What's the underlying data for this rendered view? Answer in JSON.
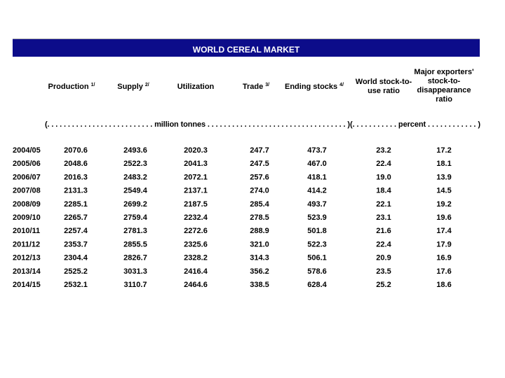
{
  "header": {
    "title": "WORLD CEREAL MARKET"
  },
  "table": {
    "columns": [
      {
        "label": "Production",
        "note": "1/"
      },
      {
        "label": "Supply",
        "note": "2/"
      },
      {
        "label": "Utilization"
      },
      {
        "label": "Trade",
        "note": "3/"
      },
      {
        "label": "Ending stocks",
        "note": "4/"
      },
      {
        "label": "World stock-to-use ratio"
      },
      {
        "label": "Major exporters' stock-to-disappearance ratio",
        "note": "5/"
      }
    ],
    "units": [
      "(. . . . . . . . . . . . . . . . . . . . . . . . . . million tonnes . . . . . . . . . . . . . . . . . . . . . . . . . . . . . . . . . . )",
      "(. . . . . . . . . . . percent . . . . . . . . . . . . )"
    ],
    "rows": [
      [
        "2004/05",
        "2070.6",
        "2493.6",
        "2020.3",
        "247.7",
        "473.7",
        "23.2",
        "17.2"
      ],
      [
        "2005/06",
        "2048.6",
        "2522.3",
        "2041.3",
        "247.5",
        "467.0",
        "22.4",
        "18.1"
      ],
      [
        "2006/07",
        "2016.3",
        "2483.2",
        "2072.1",
        "257.6",
        "418.1",
        "19.0",
        "13.9"
      ],
      [
        "2007/08",
        "2131.3",
        "2549.4",
        "2137.1",
        "274.0",
        "414.2",
        "18.4",
        "14.5"
      ],
      [
        "2008/09",
        "2285.1",
        "2699.2",
        "2187.5",
        "285.4",
        "493.7",
        "22.1",
        "19.2"
      ],
      [
        "2009/10",
        "2265.7",
        "2759.4",
        "2232.4",
        "278.5",
        "523.9",
        "23.1",
        "19.6"
      ],
      [
        "2010/11",
        "2257.4",
        "2781.3",
        "2272.6",
        "288.9",
        "501.8",
        "21.6",
        "17.4"
      ],
      [
        "2011/12",
        "2353.7",
        "2855.5",
        "2325.6",
        "321.0",
        "522.3",
        "22.4",
        "17.9"
      ],
      [
        "2012/13",
        "2304.4",
        "2826.7",
        "2328.2",
        "314.3",
        "506.1",
        "20.9",
        "16.9"
      ],
      [
        "2013/14",
        "2525.2",
        "3031.3",
        "2416.4",
        "356.2",
        "578.6",
        "23.5",
        "17.6"
      ],
      [
        "2014/15",
        "2532.1",
        "3110.7",
        "2464.6",
        "338.5",
        "628.4",
        "25.2",
        "18.6"
      ]
    ]
  }
}
